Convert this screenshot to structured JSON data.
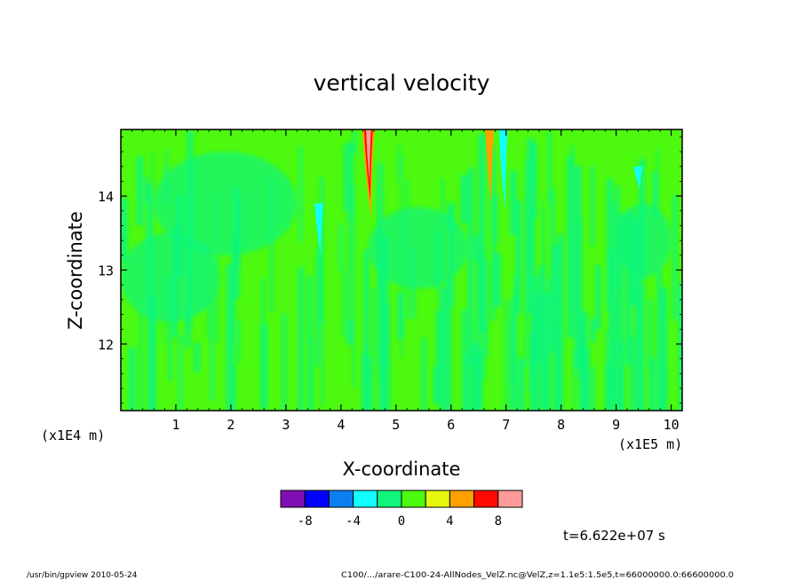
{
  "chart_data": {
    "type": "heatmap",
    "title": "vertical velocity",
    "xlabel": "X-coordinate",
    "ylabel": "Z-coordinate",
    "x_scale_note": "(x1E5 m)",
    "z_scale_note": "(x1E4 m)",
    "xlim": [
      0.0,
      10.2
    ],
    "ylim": [
      11.1,
      14.9
    ],
    "x_ticks": [
      1,
      2,
      3,
      4,
      5,
      6,
      7,
      8,
      9,
      10
    ],
    "y_ticks": [
      12,
      13,
      14
    ],
    "colorbar": {
      "colors": [
        "#7f0fb4",
        "#0000ff",
        "#0c7ff0",
        "#12ffff",
        "#10f57c",
        "#4df90f",
        "#e4f70d",
        "#ffa000",
        "#ff0a00",
        "#ff9a9a"
      ],
      "tick_labels": [
        "-8",
        "-4",
        "0",
        "4",
        "8"
      ]
    },
    "features": [
      {
        "kind": "updraft",
        "x": 4.5,
        "z_top": 14.9,
        "z_bottom": 13.7,
        "peak_value": 9
      },
      {
        "kind": "weak updraft",
        "x": 6.7,
        "z_top": 14.9,
        "z_bottom": 13.9,
        "peak_value": 4
      },
      {
        "kind": "weak downdraft",
        "x": 6.95,
        "z_top": 14.9,
        "z_bottom": 13.8,
        "peak_value": -4
      },
      {
        "kind": "weak downdraft",
        "x": 3.6,
        "z_top": 13.9,
        "z_bottom": 13.2,
        "peak_value": -4
      },
      {
        "kind": "weak downdraft",
        "x": 9.4,
        "z_top": 14.4,
        "z_bottom": 14.1,
        "peak_value": -4
      }
    ]
  },
  "time_label": "t=6.622e+07 s",
  "footer_left": "/usr/bin/gpview   2010-05-24",
  "footer_right": "C100/.../arare-C100-24-AllNodes_VelZ.nc@VelZ,z=1.1e5:1.5e5,t=66000000.0:66600000.0"
}
